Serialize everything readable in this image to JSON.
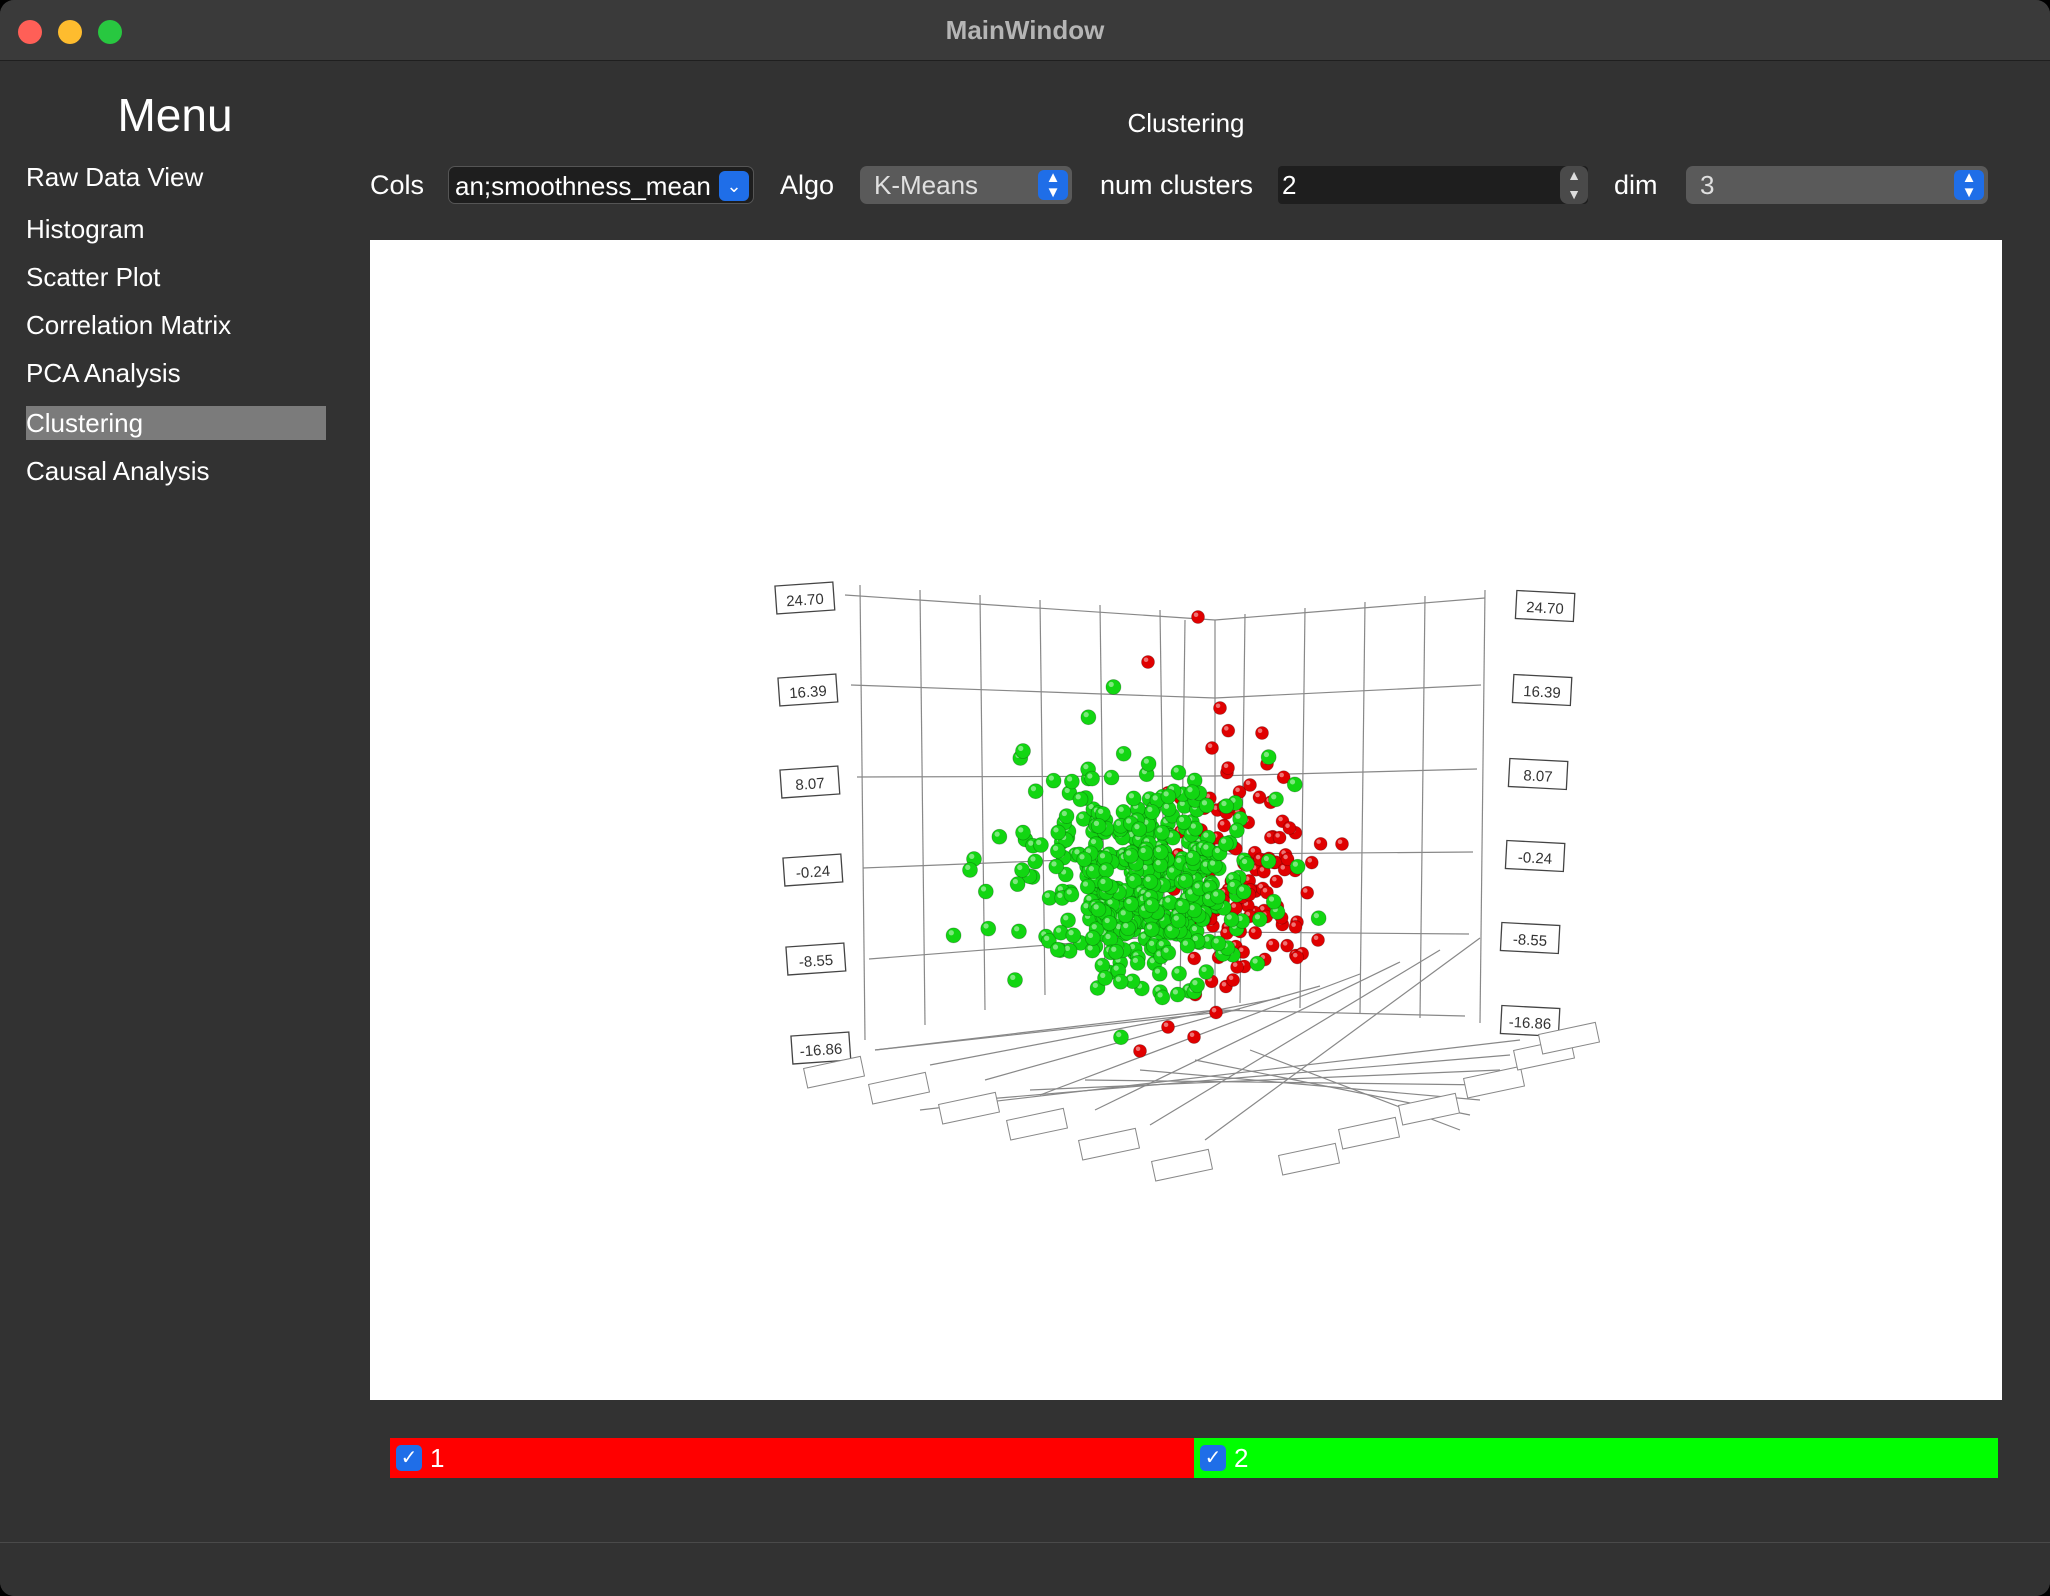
{
  "window": {
    "title": "MainWindow"
  },
  "sidebar": {
    "title": "Menu",
    "items": [
      {
        "label": "Raw Data View",
        "active": false
      },
      {
        "label": "Histogram",
        "active": false
      },
      {
        "label": "Scatter Plot",
        "active": false
      },
      {
        "label": "Correlation Matrix",
        "active": false
      },
      {
        "label": "PCA Analysis",
        "active": false
      },
      {
        "label": "Clustering",
        "active": true
      },
      {
        "label": "Causal Analysis",
        "active": false
      }
    ]
  },
  "content": {
    "title": "Clustering",
    "controls": {
      "cols_label": "Cols",
      "cols_value": "an;smoothness_mean",
      "algo_label": "Algo",
      "algo_value": "K-Means",
      "num_clusters_label": "num clusters",
      "num_clusters_value": "2",
      "dim_label": "dim",
      "dim_value": "3"
    }
  },
  "legend": [
    {
      "label": "1",
      "checked": true,
      "color": "#ff0000"
    },
    {
      "label": "2",
      "checked": true,
      "color": "#00ff00"
    }
  ],
  "colors": {
    "cluster_1": "#e00000",
    "cluster_2": "#12d612",
    "accent": "#1f6ee8"
  },
  "chart_data": {
    "type": "scatter",
    "projection": "3d",
    "y_ticks": [
      "24.70",
      "16.39",
      "8.07",
      "-0.24",
      "-8.55",
      "-16.86"
    ],
    "ylim": [
      -16.86,
      24.7
    ],
    "grid": true,
    "series": [
      {
        "name": "1",
        "color": "#e00000",
        "point_count": "approx. 120 points, concentrated at positive offsets, extending up to y ≈ 24"
      },
      {
        "name": "2",
        "color": "#12d612",
        "point_count": "approx. 450 points, dense cluster centred near y ≈ -2"
      }
    ]
  }
}
